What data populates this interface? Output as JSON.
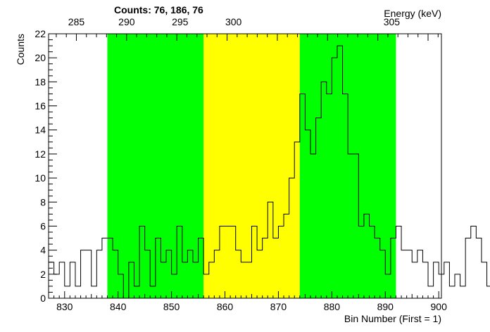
{
  "chart_data": {
    "type": "step-histogram",
    "title": "Counts:   76,   186,   76",
    "xlabel": "Bin Number (First = 1)",
    "ylabel": "Counts",
    "top_axis_label": "Energy (keV)",
    "xlim": [
      827,
      900.5
    ],
    "ylim": [
      0,
      22
    ],
    "x_ticks": [
      830,
      840,
      850,
      860,
      870,
      880,
      890,
      900
    ],
    "y_ticks": [
      0,
      2,
      4,
      6,
      8,
      10,
      12,
      14,
      16,
      18,
      20,
      22
    ],
    "top_ticks": [
      {
        "bin": 832.2,
        "label": "285"
      },
      {
        "bin": 841.6,
        "label": "290"
      },
      {
        "bin": 851.6,
        "label": "295"
      },
      {
        "bin": 861.6,
        "label": "300"
      },
      {
        "bin": 891.2,
        "label": "305"
      }
    ],
    "regions": [
      {
        "name": "background-left",
        "from": 838,
        "to": 856,
        "color": "#00ff00"
      },
      {
        "name": "peak",
        "from": 856,
        "to": 874,
        "color": "#ffff00"
      },
      {
        "name": "background-right",
        "from": 874,
        "to": 892,
        "color": "#00ff00"
      }
    ],
    "bins_start": 827,
    "bin_width": 1,
    "values": [
      3,
      2,
      3,
      1,
      3,
      1,
      4,
      4,
      1,
      4,
      5,
      5,
      4,
      2,
      0,
      3,
      1,
      6,
      4,
      1,
      5,
      3,
      4,
      2,
      6,
      3,
      4,
      3,
      5,
      2,
      3,
      4,
      6,
      6,
      6,
      4,
      3,
      3,
      6,
      4,
      5,
      8,
      5,
      6,
      7,
      10,
      13,
      17,
      14,
      12,
      15,
      18,
      17,
      20,
      21,
      17,
      12,
      12,
      6,
      7,
      6,
      5,
      4,
      2,
      5,
      6,
      4,
      4,
      3,
      4,
      3,
      1,
      3,
      2,
      3,
      1,
      2,
      1,
      5,
      6,
      5,
      3,
      1,
      1,
      5,
      3,
      5,
      4,
      2,
      5,
      1,
      3,
      1,
      3,
      4
    ]
  }
}
